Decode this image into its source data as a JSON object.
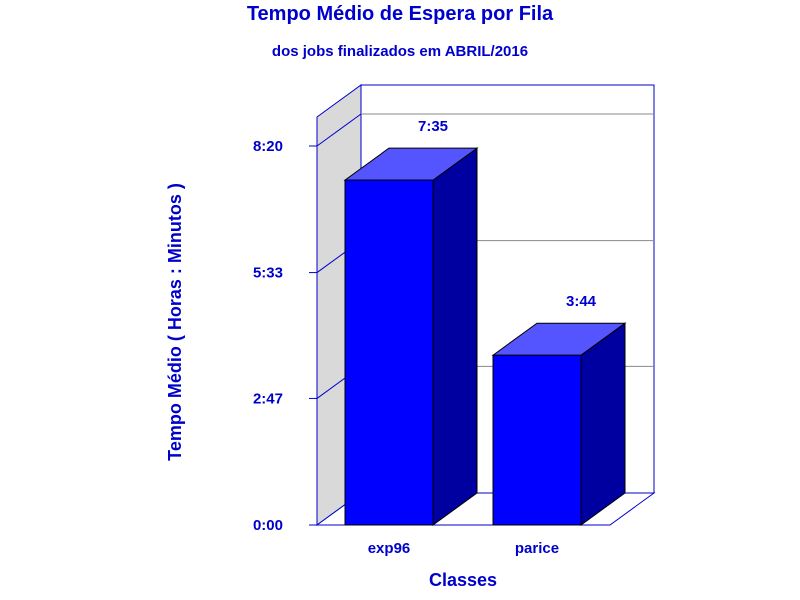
{
  "chart_data": {
    "type": "bar",
    "title": "Tempo Médio de Espera por Fila",
    "subtitle": "dos jobs finalizados em ABRIL/2016",
    "xlabel": "Classes",
    "ylabel": "Tempo Médio ( Horas : Minutos )",
    "categories": [
      "exp96",
      "parice"
    ],
    "values_minutes": [
      455,
      224
    ],
    "data_labels": [
      "7:35",
      "3:44"
    ],
    "y_ticks": [
      {
        "value": 0,
        "label": "0:00"
      },
      {
        "value": 167,
        "label": "2:47"
      },
      {
        "value": 333,
        "label": "5:33"
      },
      {
        "value": 500,
        "label": "8:20"
      }
    ],
    "ylim": [
      0,
      500
    ],
    "grid": true,
    "colors": {
      "bar_front": "#0000ff",
      "bar_top": "#5555ff",
      "bar_side": "#0000a0",
      "text": "#0000cc",
      "frame": "#0000cc",
      "left_wall": "#d9d9d9"
    }
  }
}
